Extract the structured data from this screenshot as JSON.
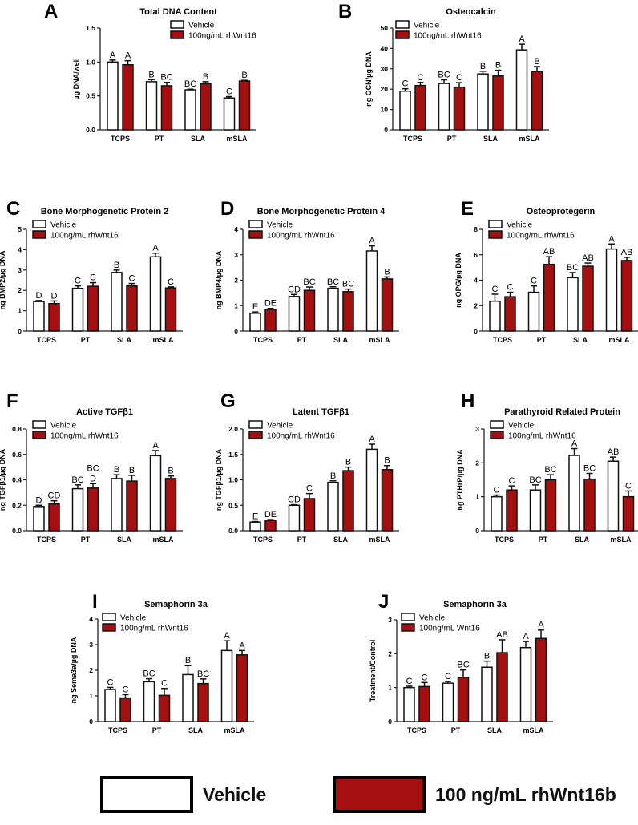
{
  "colors": {
    "vehicle": "#ffffff",
    "treatment": "#a50f0f",
    "stroke": "#111111"
  },
  "bottom_legend": {
    "vehicle": "Vehicle",
    "treatment": "100 ng/mL rhWnt16b"
  },
  "chart_data": [
    {
      "type": "bar",
      "panel": "A",
      "title": "Total DNA Content",
      "ylabel": "µg DNA/well",
      "ylim": [
        0,
        1.5
      ],
      "yticks": [
        0,
        0.5,
        1.0,
        1.5
      ],
      "ytick_labels": [
        "0.0",
        "0.5",
        "1.0",
        "1.5"
      ],
      "categories": [
        "TCPS",
        "PT",
        "SLA",
        "mSLA"
      ],
      "legend": [
        "Vehicle",
        "100ng/mL rhWnt16"
      ],
      "series": [
        {
          "name": "Vehicle",
          "values": [
            1.0,
            0.71,
            0.59,
            0.47
          ],
          "errors": [
            0.03,
            0.03,
            0.01,
            0.02
          ],
          "letters": [
            "A",
            "B",
            "BC",
            "C"
          ]
        },
        {
          "name": "100ng/mL rhWnt16",
          "values": [
            0.96,
            0.65,
            0.68,
            0.72
          ],
          "errors": [
            0.06,
            0.05,
            0.03,
            0.01
          ],
          "letters": [
            "A",
            "BC",
            "B",
            "B"
          ]
        }
      ]
    },
    {
      "type": "bar",
      "panel": "B",
      "title": "Osteocalcin",
      "ylabel": "ng OCN/µg DNA",
      "ylim": [
        0,
        50
      ],
      "yticks": [
        0,
        10,
        20,
        30,
        40,
        50
      ],
      "ytick_labels": [
        "0",
        "10",
        "20",
        "30",
        "40",
        "50"
      ],
      "categories": [
        "TCPS",
        "PT",
        "SLA",
        "mSLA"
      ],
      "legend": [
        "Vehicle",
        "100ng/mL rhWnt16"
      ],
      "series": [
        {
          "name": "Vehicle",
          "values": [
            19,
            22.8,
            27.5,
            39.3
          ],
          "errors": [
            1.2,
            1.8,
            1.3,
            2.8
          ],
          "letters": [
            "C",
            "BC",
            "B",
            "A"
          ]
        },
        {
          "name": "100ng/mL rhWnt16",
          "values": [
            21.8,
            21,
            26.5,
            28.6
          ],
          "errors": [
            1.5,
            2.2,
            2.8,
            2.5
          ],
          "letters": [
            "C",
            "C",
            "B",
            "B"
          ]
        }
      ]
    },
    {
      "type": "bar",
      "panel": "C",
      "title": "Bone Morphogenetic Protein 2",
      "ylabel": "ng BMP2/µg DNA",
      "ylim": [
        0,
        5
      ],
      "yticks": [
        0,
        1,
        2,
        3,
        4,
        5
      ],
      "ytick_labels": [
        "0",
        "1",
        "2",
        "3",
        "4",
        "5"
      ],
      "categories": [
        "TCPS",
        "PT",
        "SLA",
        "mSLA"
      ],
      "legend": [
        "Vehicle",
        "100ng/mL rhWnt16"
      ],
      "series": [
        {
          "name": "Vehicle",
          "values": [
            1.45,
            2.1,
            2.88,
            3.65
          ],
          "errors": [
            0.05,
            0.12,
            0.12,
            0.18
          ],
          "letters": [
            "D",
            "C",
            "B",
            "A"
          ]
        },
        {
          "name": "100ng/mL rhWnt16",
          "values": [
            1.35,
            2.2,
            2.22,
            2.12
          ],
          "errors": [
            0.13,
            0.18,
            0.12,
            0.05
          ],
          "letters": [
            "D",
            "C",
            "C",
            "C"
          ]
        }
      ]
    },
    {
      "type": "bar",
      "panel": "D",
      "title": "Bone Morphogenetic Protein 4",
      "ylabel": "ng BMP4/µg DNA",
      "ylim": [
        0,
        4
      ],
      "yticks": [
        0,
        1,
        2,
        3,
        4
      ],
      "ytick_labels": [
        "0",
        "1",
        "2",
        "3",
        "4"
      ],
      "categories": [
        "TCPS",
        "PT",
        "SLA",
        "mSLA"
      ],
      "legend": [
        "Vehicle",
        "100ng/mL rhWnt16"
      ],
      "series": [
        {
          "name": "Vehicle",
          "values": [
            0.7,
            1.36,
            1.68,
            3.15
          ],
          "errors": [
            0.05,
            0.08,
            0.06,
            0.2
          ],
          "letters": [
            "E",
            "CD",
            "BC",
            "A"
          ]
        },
        {
          "name": "100ng/mL rhWnt16",
          "values": [
            0.85,
            1.6,
            1.55,
            2.05
          ],
          "errors": [
            0.04,
            0.13,
            0.1,
            0.08
          ],
          "letters": [
            "DE",
            "BC",
            "BC",
            "B"
          ]
        }
      ]
    },
    {
      "type": "bar",
      "panel": "E",
      "title": "Osteoprotegerin",
      "ylabel": "ng OPG/µg DNA",
      "ylim": [
        0,
        8
      ],
      "yticks": [
        0,
        2,
        4,
        6,
        8
      ],
      "ytick_labels": [
        "0",
        "2",
        "4",
        "6",
        "8"
      ],
      "categories": [
        "TCPS",
        "PT",
        "SLA",
        "mSLA"
      ],
      "legend": [
        "Vehicle",
        "100ng/mL rhWnt16"
      ],
      "series": [
        {
          "name": "Vehicle",
          "values": [
            2.35,
            3.05,
            4.2,
            6.45
          ],
          "errors": [
            0.55,
            0.5,
            0.4,
            0.4
          ],
          "letters": [
            "C",
            "C",
            "BC",
            "A"
          ]
        },
        {
          "name": "100ng/mL rhWnt16",
          "values": [
            2.7,
            5.25,
            5.1,
            5.55
          ],
          "errors": [
            0.35,
            0.6,
            0.25,
            0.25
          ],
          "letters": [
            "C",
            "AB",
            "AB",
            "AB"
          ]
        }
      ]
    },
    {
      "type": "bar",
      "panel": "F",
      "title": "Active TGFβ1",
      "ylabel": "ng TGFβ1/µg DNA",
      "ylim": [
        0,
        0.8
      ],
      "yticks": [
        0,
        0.2,
        0.4,
        0.6,
        0.8
      ],
      "ytick_labels": [
        "0.0",
        "0.2",
        "0.4",
        "0.6",
        "0.8"
      ],
      "categories": [
        "TCPS",
        "PT",
        "SLA",
        "mSLA"
      ],
      "legend": [
        "Vehicle",
        "100ng/mL rhWnt16"
      ],
      "series": [
        {
          "name": "Vehicle",
          "values": [
            0.19,
            0.33,
            0.41,
            0.59
          ],
          "errors": [
            0.01,
            0.03,
            0.03,
            0.04
          ],
          "letters": [
            "D",
            "BC",
            "B",
            "A"
          ]
        },
        {
          "name": "100ng/mL rhWnt16",
          "values": [
            0.21,
            0.335,
            0.39,
            0.41
          ],
          "errors": [
            0.025,
            0.035,
            0.045,
            0.02
          ],
          "letters": [
            "CD",
            "D",
            "B",
            "B"
          ]
        }
      ],
      "extra_labels": [
        {
          "group": 1,
          "series": 1,
          "text": "BC"
        }
      ]
    },
    {
      "type": "bar",
      "panel": "G",
      "title": "Latent TGFβ1",
      "ylabel": "ng TGFβ1/µg DNA",
      "ylim": [
        0,
        2
      ],
      "yticks": [
        0,
        0.5,
        1,
        1.5,
        2
      ],
      "ytick_labels": [
        "0.0",
        "0.5",
        "1.0",
        "1.5",
        "2.0"
      ],
      "categories": [
        "TCPS",
        "PT",
        "SLA",
        "mSLA"
      ],
      "legend": [
        "Vehicle",
        "100ng/mL rhWnt16"
      ],
      "series": [
        {
          "name": "Vehicle",
          "values": [
            0.17,
            0.5,
            0.95,
            1.6
          ],
          "errors": [
            0.01,
            0.01,
            0.03,
            0.1
          ],
          "letters": [
            "E",
            "CD",
            "B",
            "A"
          ]
        },
        {
          "name": "100ng/mL rhWnt16",
          "values": [
            0.2,
            0.63,
            1.18,
            1.2
          ],
          "errors": [
            0.02,
            0.1,
            0.07,
            0.08
          ],
          "letters": [
            "DE",
            "C",
            "B",
            "B"
          ]
        }
      ]
    },
    {
      "type": "bar",
      "panel": "H",
      "title": "Parathyroid Related Protein",
      "ylabel": "ng PTHrP/µg DNA",
      "ylim": [
        0,
        3
      ],
      "yticks": [
        0,
        1,
        2,
        3
      ],
      "ytick_labels": [
        "0",
        "1",
        "2",
        "3"
      ],
      "categories": [
        "TCPS",
        "PT",
        "SLA",
        "mSLA"
      ],
      "legend": [
        "Vehicle",
        "100ng/mL rhWnt16"
      ],
      "series": [
        {
          "name": "Vehicle",
          "values": [
            1.0,
            1.2,
            2.22,
            2.05
          ],
          "errors": [
            0.05,
            0.15,
            0.2,
            0.12
          ],
          "letters": [
            "C",
            "BC",
            "A",
            "AB"
          ]
        },
        {
          "name": "100ng/mL rhWnt16",
          "values": [
            1.2,
            1.5,
            1.52,
            1.0
          ],
          "errors": [
            0.12,
            0.15,
            0.17,
            0.17
          ],
          "letters": [
            "C",
            "BC",
            "BC",
            "C"
          ]
        }
      ]
    },
    {
      "type": "bar",
      "panel": "I",
      "title": "Semaphorin 3a",
      "ylabel": "ng Sema3a/µg DNA",
      "ylim": [
        0,
        4
      ],
      "yticks": [
        0,
        1,
        2,
        3,
        4
      ],
      "ytick_labels": [
        "0",
        "1",
        "2",
        "3",
        "4"
      ],
      "categories": [
        "TCPS",
        "PT",
        "SLA",
        "mSLA"
      ],
      "legend": [
        "Vehicle",
        "100ng/mL rhWnt16"
      ],
      "series": [
        {
          "name": "Vehicle",
          "values": [
            1.25,
            1.55,
            1.83,
            2.77
          ],
          "errors": [
            0.08,
            0.12,
            0.35,
            0.38
          ],
          "letters": [
            "C",
            "BC",
            "B",
            "A"
          ]
        },
        {
          "name": "100ng/mL rhWnt16",
          "values": [
            0.92,
            1.02,
            1.48,
            2.6
          ],
          "errors": [
            0.13,
            0.27,
            0.18,
            0.17
          ],
          "letters": [
            "C",
            "C",
            "BC",
            "A"
          ]
        }
      ]
    },
    {
      "type": "bar",
      "panel": "J",
      "title": "Semaphorin 3a",
      "ylabel": "Treatment/Control",
      "ylim": [
        0,
        3
      ],
      "yticks": [
        0,
        1,
        2,
        3
      ],
      "ytick_labels": [
        "0",
        "1",
        "2",
        "3"
      ],
      "categories": [
        "TCPS",
        "PT",
        "SLA",
        "mSLA"
      ],
      "legend": [
        "Vehicle",
        "100ng/mL Wnt16"
      ],
      "series": [
        {
          "name": "Vehicle",
          "values": [
            1.0,
            1.13,
            1.6,
            2.18
          ],
          "errors": [
            0.04,
            0.05,
            0.18,
            0.18
          ],
          "letters": [
            "C",
            "C",
            "B",
            "A"
          ]
        },
        {
          "name": "100ng/mL Wnt16",
          "values": [
            1.03,
            1.3,
            2.03,
            2.45
          ],
          "errors": [
            0.12,
            0.22,
            0.38,
            0.25
          ],
          "letters": [
            "C",
            "BC",
            "AB",
            "A"
          ]
        }
      ]
    }
  ]
}
